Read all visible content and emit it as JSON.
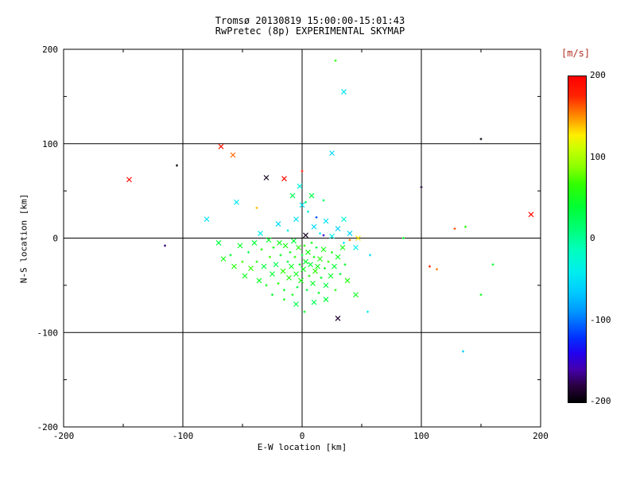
{
  "chart_data": {
    "type": "scatter",
    "title": "Tromsø 20130819 15:00:00-15:01:43",
    "subtitle": "RwPretec (8p) EXPERIMENTAL SKYMAP",
    "xlabel": "E-W location [km]",
    "ylabel": "N-S location [km]",
    "xlim": [
      -200,
      200
    ],
    "ylim": [
      -200,
      200
    ],
    "x_ticks": [
      -200,
      -100,
      0,
      100,
      200
    ],
    "y_ticks": [
      -200,
      -100,
      0,
      100,
      200
    ],
    "grid_values": [
      -100,
      0,
      100
    ],
    "grid": true,
    "legend_position": "none",
    "colorbar": {
      "title": "[m/s]",
      "ticks": [
        200,
        100,
        0,
        -100,
        -200
      ],
      "min": -200,
      "max": 200
    },
    "colormap_stops": [
      [
        0.0,
        "#000000"
      ],
      [
        0.05,
        "#2a0040"
      ],
      [
        0.1,
        "#4400aa"
      ],
      [
        0.15,
        "#2200ee"
      ],
      [
        0.2,
        "#0033ff"
      ],
      [
        0.28,
        "#0099ff"
      ],
      [
        0.34,
        "#00ccff"
      ],
      [
        0.4,
        "#00eeee"
      ],
      [
        0.47,
        "#00ffbb"
      ],
      [
        0.53,
        "#00ff77"
      ],
      [
        0.6,
        "#00ff33"
      ],
      [
        0.67,
        "#33ff00"
      ],
      [
        0.72,
        "#88ff00"
      ],
      [
        0.78,
        "#ccff00"
      ],
      [
        0.82,
        "#ffee00"
      ],
      [
        0.86,
        "#ffaa00"
      ],
      [
        0.9,
        "#ff6600"
      ],
      [
        0.94,
        "#ff2200"
      ],
      [
        1.0,
        "#ff0000"
      ]
    ],
    "marker_meaning": {
      "x": "cross marker echo",
      "+": "dot marker echo"
    },
    "points": [
      [
        -145,
        62,
        195,
        "x"
      ],
      [
        -105,
        77,
        -195,
        "+"
      ],
      [
        -115,
        -8,
        -170,
        "+"
      ],
      [
        -68,
        97,
        185,
        "x"
      ],
      [
        -58,
        88,
        160,
        "x"
      ],
      [
        -30,
        64,
        -190,
        "x"
      ],
      [
        -15,
        63,
        190,
        "x"
      ],
      [
        0,
        71,
        185,
        "+"
      ],
      [
        25,
        90,
        -55,
        "x"
      ],
      [
        35,
        155,
        -45,
        "x"
      ],
      [
        28,
        188,
        60,
        "+"
      ],
      [
        150,
        105,
        -195,
        "+"
      ],
      [
        100,
        54,
        -185,
        "+"
      ],
      [
        192,
        25,
        190,
        "x"
      ],
      [
        128,
        10,
        165,
        "+"
      ],
      [
        107,
        -30,
        175,
        "+"
      ],
      [
        113,
        -33,
        155,
        "+"
      ],
      [
        160,
        -28,
        45,
        "+"
      ],
      [
        135,
        -120,
        -60,
        "+"
      ],
      [
        150,
        -60,
        50,
        "+"
      ],
      [
        30,
        -85,
        -185,
        "x"
      ],
      [
        47,
        0,
        130,
        "x"
      ],
      [
        40,
        -2,
        155,
        "+"
      ],
      [
        -80,
        20,
        -50,
        "x"
      ],
      [
        -55,
        38,
        -45,
        "x"
      ],
      [
        85,
        0,
        40,
        "+"
      ],
      [
        57,
        -18,
        -50,
        "+"
      ],
      [
        -38,
        32,
        140,
        "+"
      ],
      [
        3,
        3,
        -190,
        "x"
      ],
      [
        18,
        3,
        -150,
        "+"
      ],
      [
        12,
        22,
        -110,
        "+"
      ],
      [
        55,
        -78,
        -40,
        "+"
      ],
      [
        45,
        -60,
        50,
        "x"
      ],
      [
        137,
        12,
        60,
        "+"
      ],
      [
        -70,
        -5,
        35,
        "x"
      ],
      [
        -66,
        -22,
        55,
        "x"
      ],
      [
        -60,
        -18,
        40,
        "+"
      ],
      [
        -57,
        -30,
        60,
        "x"
      ],
      [
        -52,
        -8,
        45,
        "x"
      ],
      [
        -50,
        -25,
        70,
        "+"
      ],
      [
        -48,
        -40,
        50,
        "x"
      ],
      [
        -45,
        -15,
        30,
        "+"
      ],
      [
        -43,
        -32,
        65,
        "x"
      ],
      [
        -40,
        -5,
        40,
        "x"
      ],
      [
        -38,
        -25,
        55,
        "+"
      ],
      [
        -36,
        -45,
        45,
        "x"
      ],
      [
        -34,
        -12,
        60,
        "+"
      ],
      [
        -32,
        -30,
        35,
        "x"
      ],
      [
        -30,
        -50,
        50,
        "+"
      ],
      [
        -28,
        -2,
        45,
        "x"
      ],
      [
        -27,
        -20,
        70,
        "+"
      ],
      [
        -25,
        -38,
        40,
        "x"
      ],
      [
        -24,
        -10,
        55,
        "+"
      ],
      [
        -22,
        -28,
        30,
        "x"
      ],
      [
        -20,
        -48,
        60,
        "+"
      ],
      [
        -19,
        -5,
        50,
        "x"
      ],
      [
        -18,
        -18,
        45,
        "+"
      ],
      [
        -16,
        -35,
        65,
        "x"
      ],
      [
        -15,
        -55,
        40,
        "+"
      ],
      [
        -14,
        -8,
        55,
        "x"
      ],
      [
        -12,
        -25,
        35,
        "+"
      ],
      [
        -11,
        -42,
        60,
        "x"
      ],
      [
        -10,
        -15,
        50,
        "+"
      ],
      [
        -9,
        -30,
        45,
        "x"
      ],
      [
        -8,
        -60,
        55,
        "+"
      ],
      [
        -7,
        -3,
        40,
        "x"
      ],
      [
        -6,
        -20,
        65,
        "+"
      ],
      [
        -5,
        -38,
        50,
        "x"
      ],
      [
        -4,
        -52,
        35,
        "+"
      ],
      [
        -3,
        -10,
        60,
        "x"
      ],
      [
        -2,
        -28,
        45,
        "+"
      ],
      [
        -1,
        -45,
        55,
        "x"
      ],
      [
        0,
        -18,
        40,
        "+"
      ],
      [
        1,
        -33,
        50,
        "x"
      ],
      [
        2,
        -8,
        65,
        "+"
      ],
      [
        3,
        -25,
        45,
        "x"
      ],
      [
        4,
        -55,
        35,
        "+"
      ],
      [
        5,
        -15,
        55,
        "x"
      ],
      [
        6,
        -40,
        60,
        "+"
      ],
      [
        7,
        -28,
        40,
        "x"
      ],
      [
        8,
        -5,
        50,
        "+"
      ],
      [
        9,
        -48,
        45,
        "x"
      ],
      [
        10,
        -20,
        55,
        "+"
      ],
      [
        11,
        -35,
        65,
        "x"
      ],
      [
        12,
        -10,
        35,
        "+"
      ],
      [
        13,
        -30,
        50,
        "x"
      ],
      [
        14,
        -58,
        45,
        "+"
      ],
      [
        15,
        -22,
        60,
        "x"
      ],
      [
        16,
        -42,
        40,
        "+"
      ],
      [
        18,
        -12,
        55,
        "x"
      ],
      [
        19,
        -32,
        50,
        "+"
      ],
      [
        20,
        -50,
        35,
        "x"
      ],
      [
        22,
        -25,
        65,
        "+"
      ],
      [
        24,
        -40,
        45,
        "x"
      ],
      [
        25,
        -15,
        55,
        "+"
      ],
      [
        27,
        -30,
        40,
        "x"
      ],
      [
        28,
        -55,
        60,
        "+"
      ],
      [
        30,
        -20,
        50,
        "x"
      ],
      [
        32,
        -38,
        35,
        "+"
      ],
      [
        34,
        -10,
        55,
        "x"
      ],
      [
        36,
        -28,
        45,
        "+"
      ],
      [
        38,
        -45,
        60,
        "x"
      ],
      [
        -35,
        5,
        -40,
        "x"
      ],
      [
        -20,
        15,
        -55,
        "x"
      ],
      [
        -12,
        8,
        -35,
        "+"
      ],
      [
        -5,
        20,
        -50,
        "x"
      ],
      [
        0,
        35,
        -45,
        "x"
      ],
      [
        5,
        28,
        -30,
        "+"
      ],
      [
        10,
        12,
        -55,
        "x"
      ],
      [
        15,
        5,
        -40,
        "+"
      ],
      [
        20,
        18,
        -50,
        "x"
      ],
      [
        25,
        2,
        -35,
        "x"
      ],
      [
        30,
        10,
        -60,
        "x"
      ],
      [
        35,
        -5,
        -45,
        "+"
      ],
      [
        -8,
        45,
        25,
        "x"
      ],
      [
        8,
        45,
        30,
        "x"
      ],
      [
        18,
        40,
        20,
        "+"
      ],
      [
        -2,
        55,
        -30,
        "x"
      ],
      [
        3,
        38,
        15,
        "+"
      ],
      [
        40,
        5,
        -55,
        "x"
      ],
      [
        45,
        -10,
        -40,
        "x"
      ],
      [
        35,
        20,
        -25,
        "x"
      ],
      [
        -5,
        -70,
        30,
        "x"
      ],
      [
        2,
        -78,
        45,
        "+"
      ],
      [
        10,
        -68,
        25,
        "x"
      ],
      [
        -15,
        -65,
        50,
        "+"
      ],
      [
        20,
        -65,
        35,
        "x"
      ],
      [
        -25,
        -60,
        40,
        "+"
      ]
    ]
  },
  "colors": {
    "background": "#ffffff",
    "axis": "#000000",
    "colorbar_title": "#b03020"
  }
}
